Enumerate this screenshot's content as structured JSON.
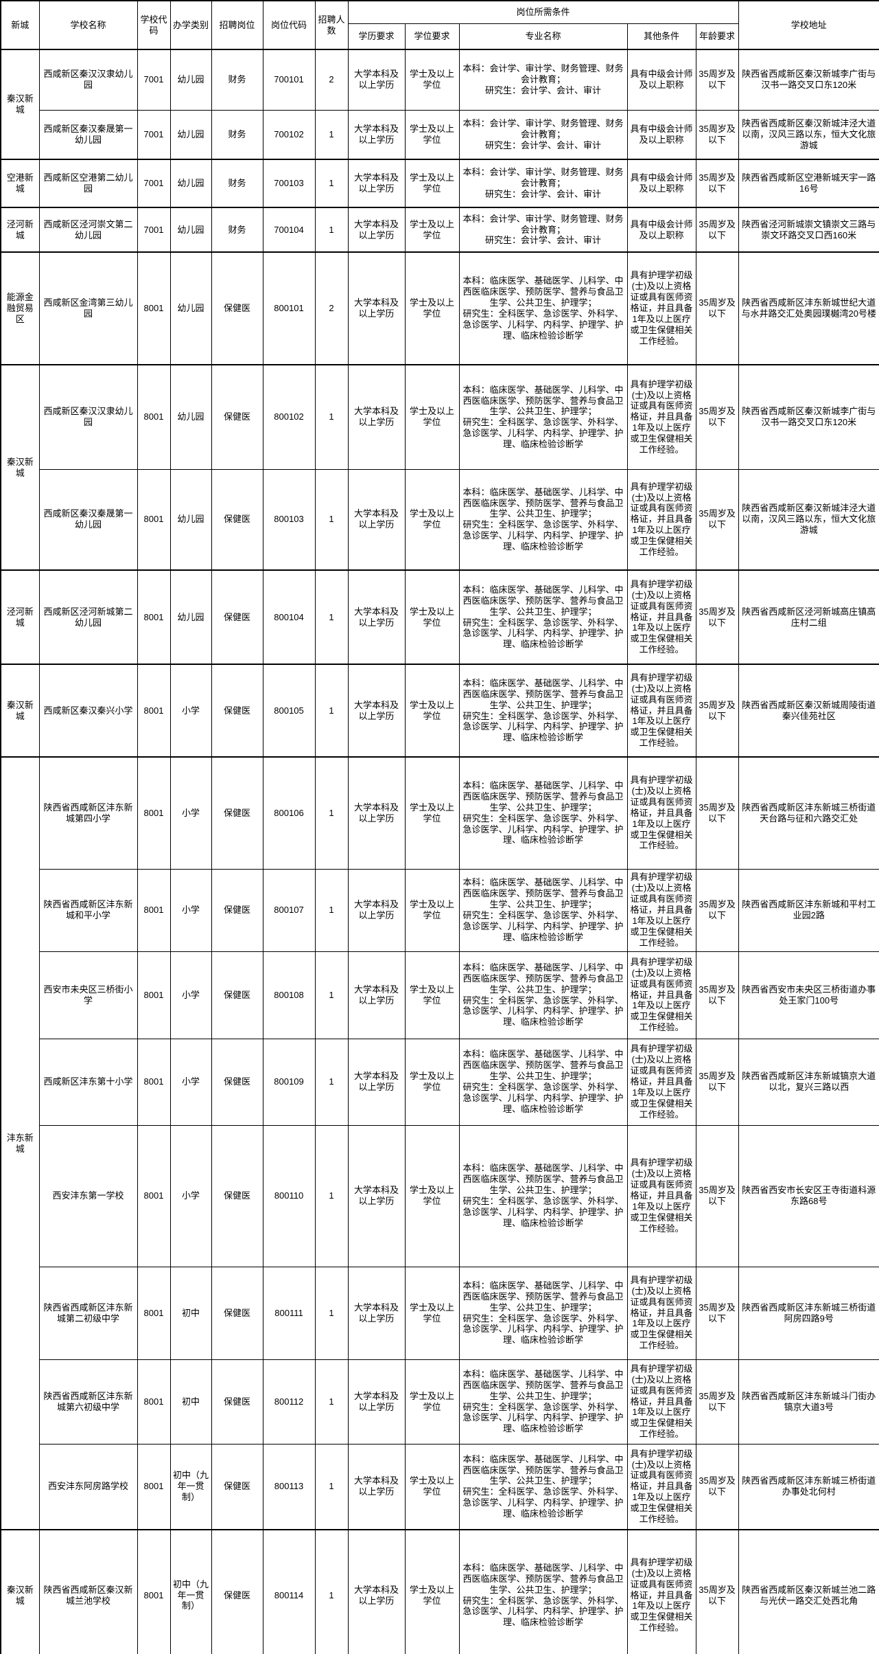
{
  "page": {
    "background_color": "#ffffff",
    "border_color": "#000000",
    "text_color": "#000000"
  },
  "table": {
    "header": {
      "district": "新城",
      "school_name": "学校名称",
      "school_code": "学校代码",
      "school_type": "办学类别",
      "post": "招聘岗位",
      "post_code": "岗位代码",
      "headcount": "招聘人数",
      "requirements_group": "岗位所需条件",
      "edu_req": "学历要求",
      "degree_req": "学位要求",
      "major": "专业名称",
      "other_cond": "其他条件",
      "age_req": "年龄要求",
      "address": "学校地址"
    },
    "shared": {
      "education": "大学本科及以上学历",
      "degree": "学士及以上学位",
      "age": "35周岁及以下",
      "major_finance": "本科：会计学、审计学、财务管理、财务会计教育；\n研究生：会计学、会计、审计",
      "major_medical": "本科：临床医学、基础医学、儿科学、中西医临床医学、预防医学、营养与食品卫生学、公共卫生、护理学；\n研究生：全科医学、急诊医学、外科学、急诊医学、儿科学、内科学、护理学、护理、临床检验诊断学",
      "other_finance": "具有中级会计师及以上职称",
      "other_medical": "具有护理学初级(士)及以上资格证或具有医师资格证，并且具备1年及以上医疗或卫生保健相关工作经验。"
    },
    "rows": [
      {
        "district": "秦汉新城",
        "district_span": 2,
        "school": "西咸新区秦汉汉隶幼儿园",
        "school_code": "7001",
        "type": "幼儿园",
        "post": "财务",
        "post_code": "700101",
        "count": "2",
        "req": "finance",
        "address": "陕西省西咸新区秦汉新城李广街与汉书一路交叉口东120米"
      },
      {
        "school": "西咸新区秦汉秦晟第一幼儿园",
        "school_code": "7001",
        "type": "幼儿园",
        "post": "财务",
        "post_code": "700102",
        "count": "1",
        "req": "finance",
        "address": "陕西省西咸新区秦汉新城沣泾大道以南，汉风三路以东，恒大文化旅游城"
      },
      {
        "district": "空港新城",
        "district_span": 1,
        "school": "西咸新区空港第二幼儿园",
        "school_code": "7001",
        "type": "幼儿园",
        "post": "财务",
        "post_code": "700103",
        "count": "1",
        "req": "finance",
        "address": "陕西省西咸新区空港新城天宇一路16号"
      },
      {
        "district": "泾河新城",
        "district_span": 1,
        "school": "西咸新区泾河崇文第二幼儿园",
        "school_code": "7001",
        "type": "幼儿园",
        "post": "财务",
        "post_code": "700104",
        "count": "1",
        "req": "finance",
        "address": "陕西省泾河新城崇文镇崇文三路与崇文环路交叉口西160米"
      },
      {
        "district": "能源金融贸易区",
        "district_span": 1,
        "school": "西咸新区金湾第三幼儿园",
        "school_code": "8001",
        "type": "幼儿园",
        "post": "保健医",
        "post_code": "800101",
        "count": "2",
        "req": "medical",
        "address": "陕西省西咸新区沣东新城世纪大道与水井路交汇处奥园璞樾湾20号楼"
      },
      {
        "district": "秦汉新城",
        "district_span": 2,
        "school": "西咸新区秦汉汉隶幼儿园",
        "school_code": "8001",
        "type": "幼儿园",
        "post": "保健医",
        "post_code": "800102",
        "count": "1",
        "req": "medical",
        "address": "陕西省西咸新区秦汉新城李广街与汉书一路交叉口东120米"
      },
      {
        "school": "西咸新区秦汉秦晟第一幼儿园",
        "school_code": "8001",
        "type": "幼儿园",
        "post": "保健医",
        "post_code": "800103",
        "count": "1",
        "req": "medical",
        "address": "陕西省西咸新区秦汉新城沣泾大道以南，汉风三路以东，恒大文化旅游城"
      },
      {
        "district": "泾河新城",
        "district_span": 1,
        "school": "西咸新区泾河新城第二幼儿园",
        "school_code": "8001",
        "type": "幼儿园",
        "post": "保健医",
        "post_code": "800104",
        "count": "1",
        "req": "medical",
        "address": "陕西省西咸新区泾河新城高庄镇高庄村二组"
      },
      {
        "district": "秦汉新城",
        "district_span": 1,
        "school": "西咸新区秦汉秦兴小学",
        "school_code": "8001",
        "type": "小学",
        "post": "保健医",
        "post_code": "800105",
        "count": "1",
        "req": "medical",
        "address": "陕西省西咸新区秦汉新城周陵街道秦兴佳苑社区"
      },
      {
        "district": "沣东新城",
        "district_span": 8,
        "school": "陕西省西咸新区沣东新城第四小学",
        "school_code": "8001",
        "type": "小学",
        "post": "保健医",
        "post_code": "800106",
        "count": "1",
        "req": "medical",
        "address": "陕西省西咸新区沣东新城三桥街道天台路与征和六路交汇处"
      },
      {
        "school": "陕西省西咸新区沣东新城和平小学",
        "school_code": "8001",
        "type": "小学",
        "post": "保健医",
        "post_code": "800107",
        "count": "1",
        "req": "medical",
        "address": "陕西省西咸新区沣东新城和平村工业园2路"
      },
      {
        "school": "西安市未央区三桥街小学",
        "school_code": "8001",
        "type": "小学",
        "post": "保健医",
        "post_code": "800108",
        "count": "1",
        "req": "medical",
        "address": "陕西省西安市未央区三桥街道办事处王家门100号"
      },
      {
        "school": "西咸新区沣东第十小学",
        "school_code": "8001",
        "type": "小学",
        "post": "保健医",
        "post_code": "800109",
        "count": "1",
        "req": "medical",
        "address": "陕西省西咸新区沣东新城镐京大道以北，复兴三路以西"
      },
      {
        "school": "西安沣东第一学校",
        "school_code": "8001",
        "type": "小学",
        "post": "保健医",
        "post_code": "800110",
        "count": "1",
        "req": "medical",
        "address": "陕西省西安市长安区王寺街道科源东路68号"
      },
      {
        "school": "陕西省西咸新区沣东新城第二初级中学",
        "school_code": "8001",
        "type": "初中",
        "post": "保健医",
        "post_code": "800111",
        "count": "1",
        "req": "medical",
        "address": "陕西省西咸新区沣东新城三桥街道阿房四路9号"
      },
      {
        "school": "陕西省西咸新区沣东新城第六初级中学",
        "school_code": "8001",
        "type": "初中",
        "post": "保健医",
        "post_code": "800112",
        "count": "1",
        "req": "medical",
        "address": "陕西省西咸新区沣东新城斗门街办镐京大道3号"
      },
      {
        "school": "西安沣东阿房路学校",
        "school_code": "8001",
        "type": "初中（九年一贯制）",
        "post": "保健医",
        "post_code": "800113",
        "count": "1",
        "req": "medical",
        "address": "陕西省西咸新区沣东新城三桥街道办事处北何村"
      },
      {
        "district": "秦汉新城",
        "district_span": 1,
        "school": "陕西省西咸新区秦汉新城兰池学校",
        "school_code": "8001",
        "type": "初中（九年一贯制）",
        "post": "保健医",
        "post_code": "800114",
        "count": "1",
        "req": "medical",
        "address": "陕西省西咸新区秦汉新城兰池二路与光伏一路交汇处西北角"
      }
    ]
  }
}
